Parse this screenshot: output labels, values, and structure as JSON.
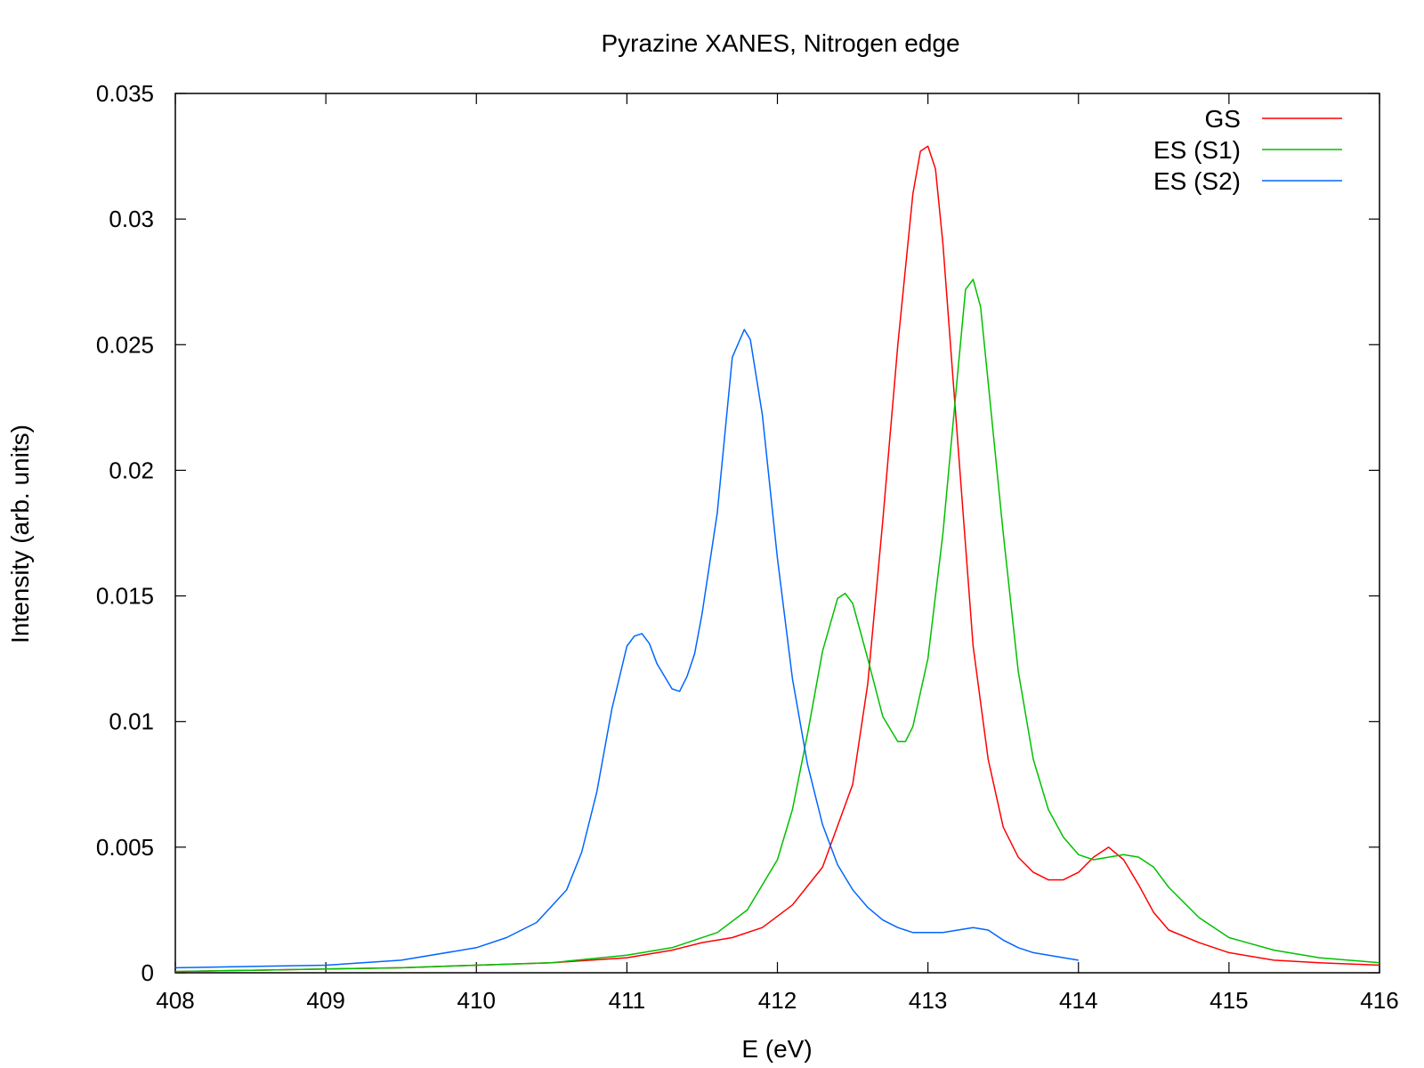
{
  "chart_data": {
    "type": "line",
    "title": "Pyrazine XANES, Nitrogen edge",
    "xlabel": "E (eV)",
    "ylabel": "Intensity (arb. units)",
    "xlim": [
      408,
      416
    ],
    "ylim": [
      0,
      0.035
    ],
    "x_ticks": [
      "408",
      "409",
      "410",
      "411",
      "412",
      "413",
      "414",
      "415",
      "416"
    ],
    "y_ticks": [
      "0",
      "0.005",
      "0.01",
      "0.015",
      "0.02",
      "0.025",
      "0.03",
      "0.035"
    ],
    "grid": false,
    "legend_position": "top-right",
    "series": [
      {
        "name": "GS",
        "color": "#ff0000",
        "x": [
          408,
          408.5,
          409,
          409.5,
          410,
          410.5,
          411,
          411.3,
          411.5,
          411.7,
          411.9,
          412.1,
          412.3,
          412.5,
          412.6,
          412.7,
          412.8,
          412.9,
          412.95,
          413.0,
          413.05,
          413.1,
          413.2,
          413.3,
          413.4,
          413.5,
          413.6,
          413.7,
          413.8,
          413.9,
          414.0,
          414.1,
          414.2,
          414.3,
          414.4,
          414.5,
          414.6,
          414.8,
          415.0,
          415.3,
          415.6,
          416.0
        ],
        "y": [
          5e-05,
          0.0001,
          0.00015,
          0.0002,
          0.0003,
          0.0004,
          0.0006,
          0.0009,
          0.0012,
          0.0014,
          0.0018,
          0.0027,
          0.0042,
          0.0075,
          0.0115,
          0.018,
          0.025,
          0.031,
          0.0327,
          0.0329,
          0.032,
          0.029,
          0.021,
          0.013,
          0.0085,
          0.0058,
          0.0046,
          0.004,
          0.0037,
          0.0037,
          0.004,
          0.0046,
          0.005,
          0.0045,
          0.0035,
          0.0024,
          0.0017,
          0.0012,
          0.0008,
          0.0005,
          0.0004,
          0.0003
        ]
      },
      {
        "name": "ES (S1)",
        "color": "#00c000",
        "x": [
          408,
          408.5,
          409,
          409.5,
          410,
          410.5,
          411,
          411.3,
          411.6,
          411.8,
          412.0,
          412.1,
          412.2,
          412.3,
          412.4,
          412.45,
          412.5,
          412.6,
          412.7,
          412.8,
          412.85,
          412.9,
          413.0,
          413.1,
          413.2,
          413.25,
          413.3,
          413.35,
          413.4,
          413.5,
          413.6,
          413.7,
          413.8,
          413.9,
          414.0,
          414.1,
          414.2,
          414.3,
          414.4,
          414.5,
          414.6,
          414.8,
          415.0,
          415.3,
          415.6,
          416.0
        ],
        "y": [
          5e-05,
          0.0001,
          0.00015,
          0.0002,
          0.0003,
          0.0004,
          0.0007,
          0.001,
          0.0016,
          0.0025,
          0.0045,
          0.0065,
          0.0095,
          0.0128,
          0.0149,
          0.0151,
          0.0147,
          0.0125,
          0.0102,
          0.0092,
          0.0092,
          0.0098,
          0.0125,
          0.0175,
          0.024,
          0.0272,
          0.0276,
          0.0265,
          0.0235,
          0.0175,
          0.012,
          0.0085,
          0.0065,
          0.0054,
          0.0047,
          0.0045,
          0.0046,
          0.0047,
          0.0046,
          0.0042,
          0.0034,
          0.0022,
          0.0014,
          0.0009,
          0.0006,
          0.0004
        ]
      },
      {
        "name": "ES (S2)",
        "color": "#0066ff",
        "x": [
          408,
          408.5,
          409,
          409.5,
          410,
          410.2,
          410.4,
          410.6,
          410.7,
          410.8,
          410.9,
          411.0,
          411.05,
          411.1,
          411.15,
          411.2,
          411.3,
          411.35,
          411.4,
          411.45,
          411.5,
          411.6,
          411.7,
          411.78,
          411.82,
          411.9,
          412.0,
          412.1,
          412.2,
          412.3,
          412.4,
          412.5,
          412.6,
          412.7,
          412.8,
          412.9,
          413.0,
          413.1,
          413.2,
          413.3,
          413.4,
          413.5,
          413.6,
          413.7,
          413.8,
          414.0
        ],
        "y": [
          0.0002,
          0.00025,
          0.0003,
          0.0005,
          0.001,
          0.0014,
          0.002,
          0.0033,
          0.0048,
          0.0072,
          0.0105,
          0.013,
          0.0134,
          0.0135,
          0.0131,
          0.0123,
          0.0113,
          0.0112,
          0.0118,
          0.0127,
          0.0143,
          0.0183,
          0.0245,
          0.0256,
          0.0252,
          0.0222,
          0.0165,
          0.0117,
          0.0083,
          0.0059,
          0.0043,
          0.0033,
          0.0026,
          0.0021,
          0.0018,
          0.0016,
          0.0016,
          0.0016,
          0.0017,
          0.0018,
          0.0017,
          0.0013,
          0.001,
          0.0008,
          0.0007,
          0.0005
        ]
      }
    ]
  }
}
